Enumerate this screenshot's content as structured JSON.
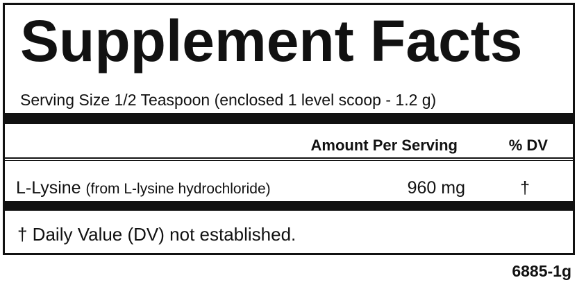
{
  "title": "Supplement Facts",
  "serving_size": "Serving Size 1/2 Teaspoon (enclosed 1 level scoop - 1.2 g)",
  "header": {
    "amount": "Amount Per Serving",
    "dv": "% DV"
  },
  "rows": [
    {
      "name": "L-Lysine",
      "source": "(from L-lysine hydrochloride)",
      "amount": "960 mg",
      "dv": "†"
    }
  ],
  "footnote": "† Daily Value (DV) not established.",
  "code": "6885-1g"
}
